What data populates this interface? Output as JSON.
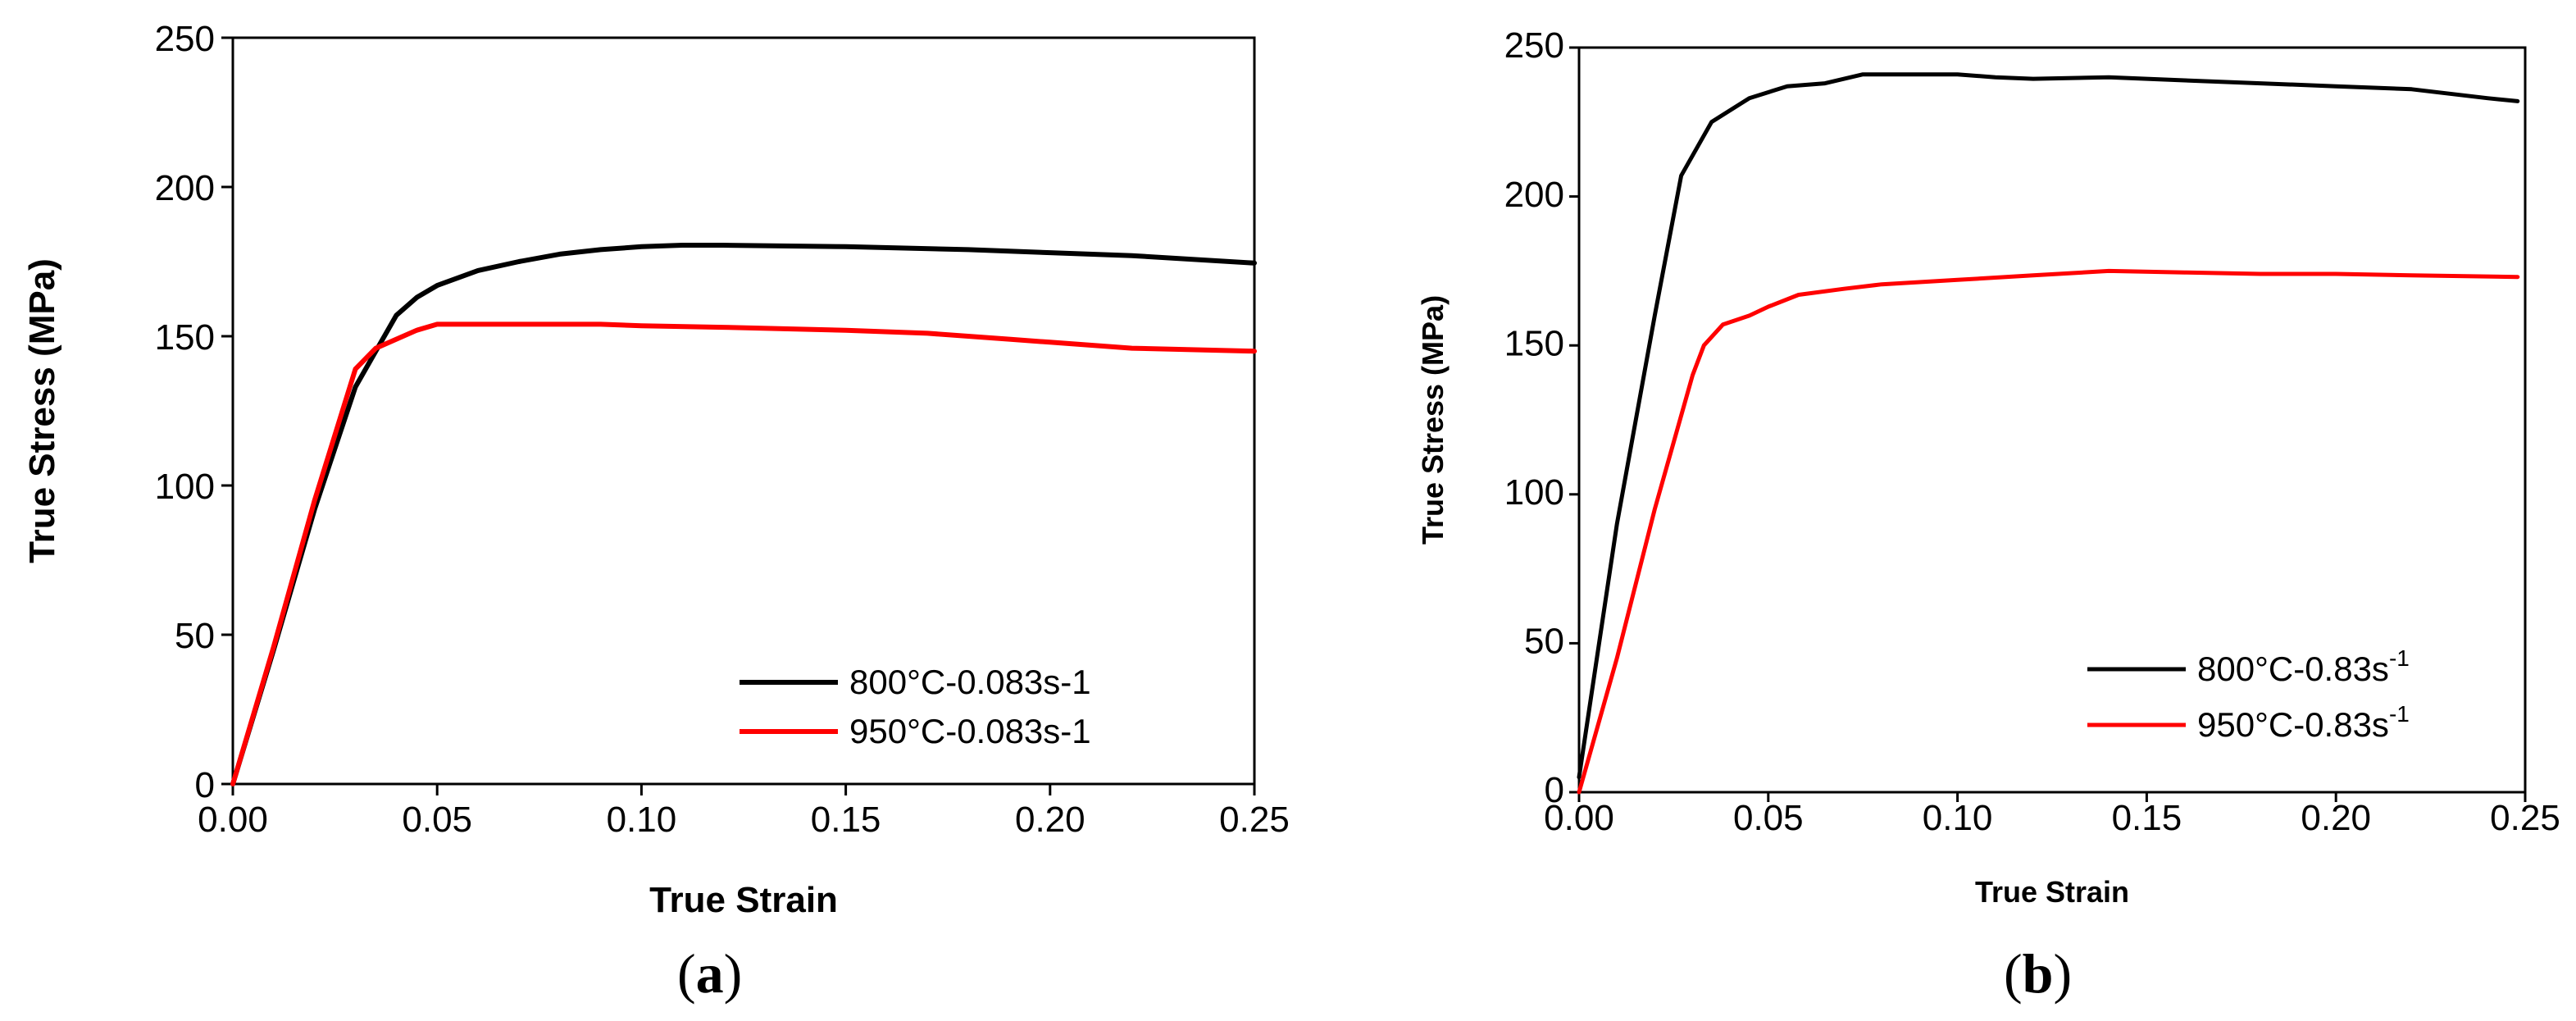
{
  "figure": {
    "caption_a": "a",
    "caption_b": "b",
    "paren_open": "(",
    "paren_close": ")"
  },
  "chart_data": [
    {
      "type": "line",
      "panel": "a",
      "xlabel": "True Strain",
      "ylabel": "True Stress (MPa)",
      "xlim": [
        0,
        0.25
      ],
      "ylim": [
        0,
        250
      ],
      "xticks": [
        0,
        0.05,
        0.1,
        0.15,
        0.2,
        0.25
      ],
      "xtick_labels": [
        "0.00",
        "0.05",
        "0.10",
        "0.15",
        "0.20",
        "0.25"
      ],
      "yticks": [
        0,
        50,
        100,
        150,
        200,
        250
      ],
      "ytick_labels": [
        "0",
        "50",
        "100",
        "150",
        "200",
        "250"
      ],
      "legend_position": "bottom-right",
      "series": [
        {
          "name": "800°C-0.083s-1",
          "label_base": "800°C-0.083s-1",
          "label_sup": "",
          "color": "#000000",
          "x": [
            0,
            0.01,
            0.02,
            0.03,
            0.035,
            0.04,
            0.045,
            0.05,
            0.06,
            0.07,
            0.08,
            0.09,
            0.1,
            0.11,
            0.12,
            0.15,
            0.18,
            0.2,
            0.22,
            0.25
          ],
          "y": [
            0,
            45,
            92,
            133,
            145,
            157,
            163,
            167,
            172,
            175,
            177.5,
            179,
            180,
            180.5,
            180.5,
            180,
            179,
            178,
            177,
            174.5
          ]
        },
        {
          "name": "950°C-0.083s-1",
          "label_base": "950°C-0.083s-1",
          "label_sup": "",
          "color": "#ff0000",
          "x": [
            0,
            0.01,
            0.02,
            0.03,
            0.035,
            0.04,
            0.045,
            0.05,
            0.07,
            0.09,
            0.1,
            0.12,
            0.15,
            0.17,
            0.19,
            0.2,
            0.22,
            0.25
          ],
          "y": [
            0,
            46,
            95,
            139,
            146,
            149,
            152,
            154,
            154,
            154,
            153.5,
            153,
            152,
            151,
            149,
            148,
            146,
            145
          ]
        }
      ]
    },
    {
      "type": "line",
      "panel": "b",
      "xlabel": "True Strain",
      "ylabel": "True Stress (MPa)",
      "xlim": [
        0,
        0.25
      ],
      "ylim": [
        0,
        250
      ],
      "xticks": [
        0,
        0.05,
        0.1,
        0.15,
        0.2,
        0.25
      ],
      "xtick_labels": [
        "0.00",
        "0.05",
        "0.10",
        "0.15",
        "0.20",
        "0.25"
      ],
      "yticks": [
        0,
        50,
        100,
        150,
        200,
        250
      ],
      "ytick_labels": [
        "0",
        "50",
        "100",
        "150",
        "200",
        "250"
      ],
      "legend_position": "bottom-right",
      "series": [
        {
          "name": "800°C-0.83s-1",
          "label_base": "800°C-0.83s",
          "label_sup": "-1",
          "color": "#000000",
          "x": [
            0,
            0.01,
            0.02,
            0.027,
            0.035,
            0.045,
            0.055,
            0.065,
            0.075,
            0.09,
            0.1,
            0.11,
            0.12,
            0.14,
            0.16,
            0.18,
            0.2,
            0.22,
            0.24,
            0.248
          ],
          "y": [
            5,
            90,
            160,
            207,
            225,
            233,
            237,
            238,
            241,
            241,
            241,
            240,
            239.5,
            240,
            239,
            238,
            237,
            236,
            233,
            232
          ]
        },
        {
          "name": "950°C-0.83s-1",
          "label_base": "950°C-0.83s",
          "label_sup": "-1",
          "color": "#ff0000",
          "x": [
            0,
            0.01,
            0.02,
            0.03,
            0.033,
            0.038,
            0.045,
            0.05,
            0.058,
            0.07,
            0.08,
            0.1,
            0.12,
            0.14,
            0.16,
            0.18,
            0.2,
            0.22,
            0.248
          ],
          "y": [
            0,
            45,
            95,
            140,
            150,
            157,
            160,
            163,
            167,
            169,
            170.5,
            172,
            173.5,
            175,
            174.5,
            174,
            174,
            173.5,
            173
          ]
        }
      ]
    }
  ]
}
